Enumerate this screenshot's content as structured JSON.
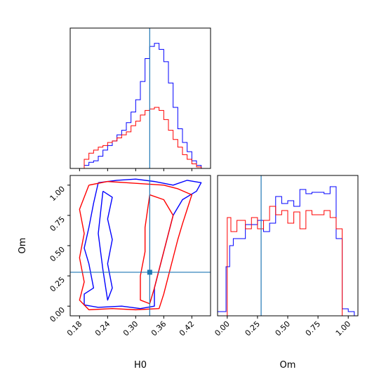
{
  "chart_data": [
    {
      "type": "histogram",
      "panel": "H0",
      "xlim": [
        0.16,
        0.46
      ],
      "series": [
        {
          "color": "#0000ff",
          "edges": [
            0.19,
            0.2,
            0.21,
            0.22,
            0.23,
            0.24,
            0.25,
            0.26,
            0.27,
            0.28,
            0.29,
            0.3,
            0.31,
            0.32,
            0.33,
            0.34,
            0.35,
            0.36,
            0.37,
            0.38,
            0.39,
            0.4,
            0.41,
            0.42,
            0.43,
            0.44
          ],
          "counts": [
            0.02,
            0.04,
            0.05,
            0.08,
            0.12,
            0.15,
            0.18,
            0.22,
            0.25,
            0.3,
            0.37,
            0.45,
            0.57,
            0.72,
            0.8,
            0.82,
            0.78,
            0.7,
            0.56,
            0.4,
            0.26,
            0.17,
            0.11,
            0.05,
            0.02
          ]
        },
        {
          "color": "#ff0000",
          "edges": [
            0.19,
            0.2,
            0.21,
            0.22,
            0.23,
            0.24,
            0.25,
            0.26,
            0.27,
            0.28,
            0.29,
            0.3,
            0.31,
            0.32,
            0.33,
            0.34,
            0.35,
            0.36,
            0.37,
            0.38,
            0.39,
            0.4,
            0.41,
            0.42,
            0.43,
            0.44
          ],
          "counts": [
            0.06,
            0.1,
            0.12,
            0.14,
            0.15,
            0.17,
            0.18,
            0.2,
            0.22,
            0.24,
            0.28,
            0.31,
            0.35,
            0.38,
            0.39,
            0.4,
            0.38,
            0.32,
            0.25,
            0.19,
            0.14,
            0.09,
            0.06,
            0.03,
            0.01
          ]
        }
      ],
      "truth": 0.33
    },
    {
      "type": "contour",
      "panel": "H0-Om",
      "xlabel": "H0",
      "ylabel": "Om",
      "xlim": [
        0.16,
        0.46
      ],
      "ylim": [
        -0.08,
        1.08
      ],
      "xticks": [
        "0.18",
        "0.24",
        "0.30",
        "0.36",
        "0.42"
      ],
      "xtick_values": [
        0.18,
        0.24,
        0.3,
        0.36,
        0.42
      ],
      "yticks": [
        "0.00",
        "0.25",
        "0.50",
        "0.75",
        "1.00"
      ],
      "ytick_values": [
        0.0,
        0.25,
        0.5,
        0.75,
        1.0
      ],
      "truth": [
        0.33,
        0.28
      ],
      "contours": [
        {
          "color": "#0000ff",
          "points": [
            [
              0.22,
              1.02
            ],
            [
              0.26,
              1.04
            ],
            [
              0.3,
              1.05
            ],
            [
              0.34,
              1.03
            ],
            [
              0.38,
              1.0
            ],
            [
              0.41,
              1.04
            ],
            [
              0.44,
              1.02
            ],
            [
              0.43,
              0.95
            ],
            [
              0.4,
              0.88
            ],
            [
              0.38,
              0.75
            ],
            [
              0.37,
              0.6
            ],
            [
              0.36,
              0.45
            ],
            [
              0.35,
              0.3
            ],
            [
              0.34,
              0.15
            ],
            [
              0.34,
              0.0
            ],
            [
              0.31,
              -0.02
            ],
            [
              0.27,
              0.0
            ],
            [
              0.22,
              -0.01
            ],
            [
              0.19,
              0.01
            ],
            [
              0.19,
              0.1
            ],
            [
              0.21,
              0.15
            ],
            [
              0.2,
              0.35
            ],
            [
              0.19,
              0.48
            ],
            [
              0.2,
              0.65
            ],
            [
              0.21,
              0.85
            ],
            [
              0.22,
              1.02
            ]
          ]
        },
        {
          "color": "#0000ff",
          "points": [
            [
              0.23,
              0.95
            ],
            [
              0.25,
              0.9
            ],
            [
              0.24,
              0.72
            ],
            [
              0.25,
              0.55
            ],
            [
              0.24,
              0.35
            ],
            [
              0.25,
              0.15
            ],
            [
              0.24,
              0.05
            ],
            [
              0.23,
              0.3
            ],
            [
              0.22,
              0.6
            ],
            [
              0.23,
              0.95
            ]
          ]
        },
        {
          "color": "#ff0000",
          "points": [
            [
              0.2,
              1.0
            ],
            [
              0.24,
              1.03
            ],
            [
              0.28,
              1.02
            ],
            [
              0.32,
              1.01
            ],
            [
              0.36,
              1.0
            ],
            [
              0.39,
              0.97
            ],
            [
              0.42,
              0.92
            ],
            [
              0.41,
              0.8
            ],
            [
              0.4,
              0.68
            ],
            [
              0.39,
              0.55
            ],
            [
              0.38,
              0.4
            ],
            [
              0.37,
              0.25
            ],
            [
              0.36,
              0.1
            ],
            [
              0.35,
              -0.02
            ],
            [
              0.3,
              -0.03
            ],
            [
              0.25,
              -0.02
            ],
            [
              0.2,
              -0.03
            ],
            [
              0.18,
              0.05
            ],
            [
              0.19,
              0.2
            ],
            [
              0.18,
              0.4
            ],
            [
              0.19,
              0.6
            ],
            [
              0.18,
              0.8
            ],
            [
              0.2,
              1.0
            ]
          ]
        },
        {
          "color": "#ff0000",
          "points": [
            [
              0.33,
              0.92
            ],
            [
              0.36,
              0.88
            ],
            [
              0.38,
              0.75
            ],
            [
              0.37,
              0.6
            ],
            [
              0.36,
              0.45
            ],
            [
              0.35,
              0.3
            ],
            [
              0.34,
              0.15
            ],
            [
              0.33,
              0.02
            ],
            [
              0.31,
              0.05
            ],
            [
              0.31,
              0.25
            ],
            [
              0.32,
              0.45
            ],
            [
              0.32,
              0.65
            ],
            [
              0.33,
              0.92
            ]
          ]
        }
      ]
    },
    {
      "type": "histogram",
      "panel": "Om",
      "xlabel": "Om",
      "xlim": [
        -0.08,
        1.08
      ],
      "xticks": [
        "0.00",
        "0.25",
        "0.50",
        "0.75",
        "1.00"
      ],
      "xtick_values": [
        0.0,
        0.25,
        0.5,
        0.75,
        1.0
      ],
      "series": [
        {
          "color": "#0000ff",
          "edges": [
            -0.08,
            -0.01,
            0.02,
            0.05,
            0.08,
            0.15,
            0.2,
            0.25,
            0.3,
            0.35,
            0.4,
            0.45,
            0.5,
            0.55,
            0.6,
            0.65,
            0.7,
            0.75,
            0.8,
            0.85,
            0.9,
            0.95,
            1.0,
            1.05
          ],
          "counts": [
            0.03,
            0.35,
            0.5,
            0.55,
            0.55,
            0.65,
            0.65,
            0.68,
            0.6,
            0.66,
            0.85,
            0.8,
            0.82,
            0.78,
            0.9,
            0.87,
            0.88,
            0.88,
            0.87,
            0.92,
            0.55,
            0.05,
            0.03
          ]
        },
        {
          "color": "#ff0000",
          "edges": [
            0.0,
            0.03,
            0.08,
            0.15,
            0.2,
            0.25,
            0.3,
            0.35,
            0.4,
            0.45,
            0.5,
            0.55,
            0.6,
            0.65,
            0.7,
            0.75,
            0.8,
            0.85,
            0.9,
            0.95,
            1.0
          ],
          "counts": [
            0.7,
            0.6,
            0.68,
            0.62,
            0.7,
            0.62,
            0.68,
            0.78,
            0.72,
            0.75,
            0.66,
            0.74,
            0.62,
            0.75,
            0.72,
            0.72,
            0.75,
            0.7,
            0.62,
            0.0
          ]
        }
      ],
      "truth": 0.28
    }
  ]
}
